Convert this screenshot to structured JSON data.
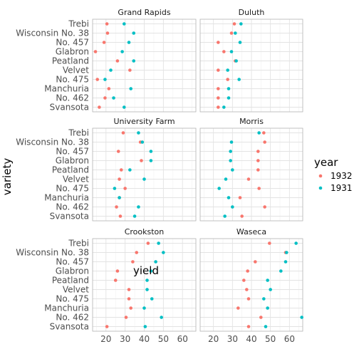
{
  "chart_data": {
    "type": "scatter",
    "xlabel": "yield",
    "ylabel": "variety",
    "xlim": [
      13,
      67
    ],
    "x_ticks": [
      20,
      30,
      40,
      50,
      60
    ],
    "varieties": [
      "Trebi",
      "Wisconsin No. 38",
      "No. 457",
      "Glabron",
      "Peatland",
      "Velvet",
      "No. 475",
      "Manchuria",
      "No. 462",
      "Svansota"
    ],
    "legend": {
      "title": "year",
      "placement": "right",
      "entries": [
        {
          "name": "1932",
          "color": "#F8766D"
        },
        {
          "name": "1931",
          "color": "#00BFC4"
        }
      ]
    },
    "panels": [
      {
        "title": "Grand Rapids",
        "series": [
          {
            "name": "1932",
            "values": [
              20.5,
              20.8,
              19.0,
              14.5,
              26.0,
              32.5,
              15.5,
              21.5,
              19.5,
              16.5
            ]
          },
          {
            "name": "1931",
            "values": [
              29.5,
              34.5,
              32.0,
              28.5,
              34.5,
              22.5,
              19.5,
              33.0,
              24.0,
              29.5
            ]
          }
        ]
      },
      {
        "title": "Duluth",
        "series": [
          {
            "name": "1932",
            "values": [
              31.0,
              29.5,
              22.5,
              25.5,
              31.5,
              22.5,
              27.5,
              22.5,
              22.5,
              22.5
            ]
          },
          {
            "name": "1931",
            "values": [
              34.5,
              31.5,
              34.0,
              29.5,
              32.0,
              27.5,
              33.5,
              28.0,
              28.0,
              25.5
            ]
          }
        ]
      },
      {
        "title": "University Farm",
        "series": [
          {
            "name": "1932",
            "values": [
              29.0,
              38.0,
              26.5,
              38.5,
              28.0,
              27.0,
              30.0,
              27.0,
              25.5,
              27.5
            ]
          },
          {
            "name": "1931",
            "values": [
              37.0,
              39.0,
              43.5,
              43.5,
              32.5,
              40.0,
              24.5,
              27.0,
              37.0,
              35.0
            ]
          }
        ]
      },
      {
        "title": "Morris",
        "series": [
          {
            "name": "1932",
            "values": [
              46.5,
              47.0,
              43.5,
              43.5,
              43.5,
              38.5,
              44.0,
              34.0,
              47.0,
              35.0
            ]
          },
          {
            "name": "1931",
            "values": [
              44.0,
              29.5,
              29.0,
              29.0,
              30.0,
              26.5,
              23.0,
              28.0,
              30.0,
              26.0
            ]
          }
        ]
      },
      {
        "title": "Crookston",
        "series": [
          {
            "name": "1932",
            "values": [
              42.0,
              36.0,
              34.0,
              26.0,
              25.0,
              32.0,
              32.0,
              33.0,
              30.5,
              20.5
            ]
          },
          {
            "name": "1931",
            "values": [
              47.5,
              50.0,
              46.0,
              43.5,
              41.5,
              41.5,
              44.0,
              40.0,
              49.0,
              40.5
            ]
          }
        ]
      },
      {
        "title": "Waseca",
        "series": [
          {
            "name": "1932",
            "values": [
              49.5,
              58.0,
              42.0,
              38.0,
              36.0,
              37.5,
              38.5,
              33.0,
              45.0,
              38.5
            ]
          },
          {
            "name": "1931",
            "values": [
              63.5,
              58.5,
              58.0,
              55.5,
              48.5,
              50.0,
              46.5,
              48.5,
              66.5,
              47.5
            ]
          }
        ]
      }
    ]
  }
}
